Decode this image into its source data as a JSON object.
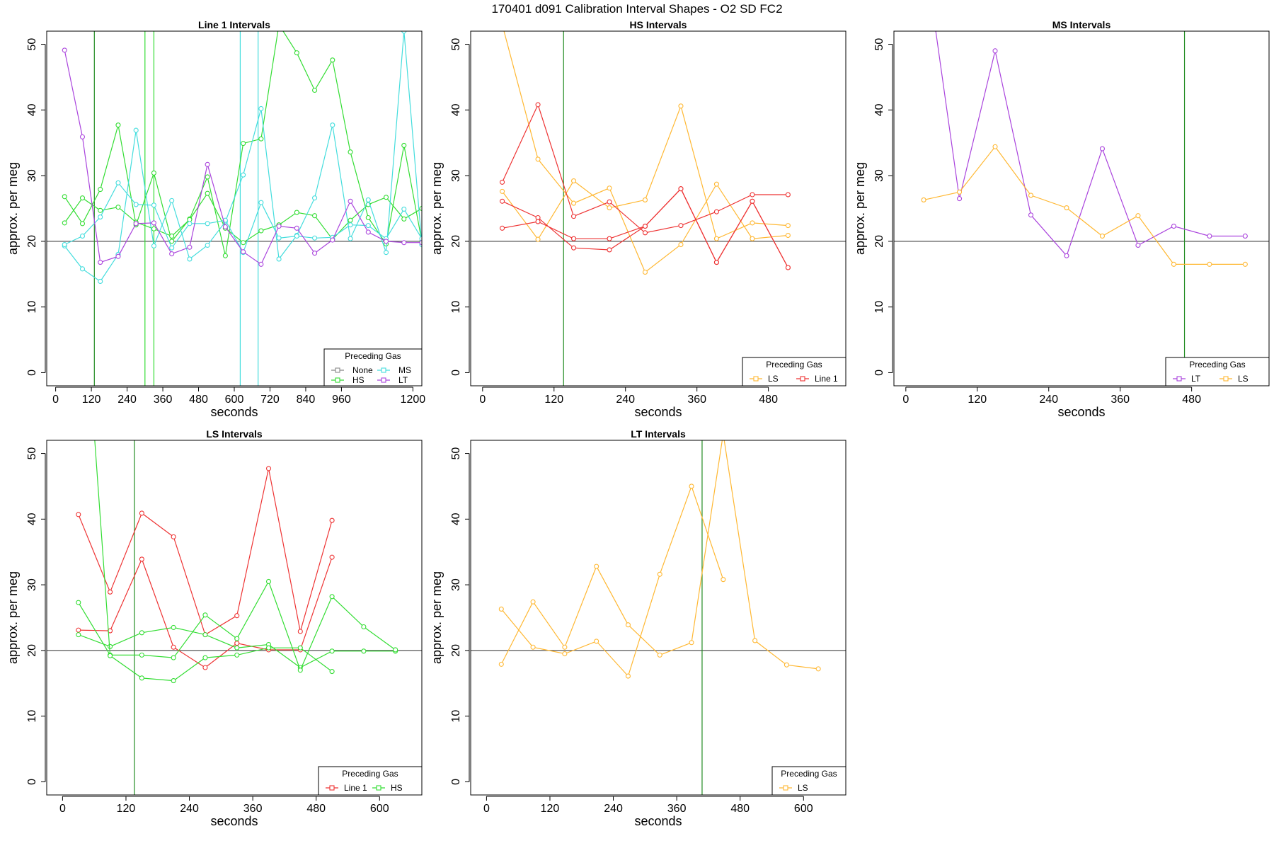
{
  "suptitle": "170401    d091    Calibration Interval Shapes - O2 SD FC2",
  "legend_title": "Preceding Gas",
  "colors": {
    "None": "#888888",
    "HS": "#33dd33",
    "MS": "#44dddd",
    "LT": "#aa44dd",
    "LS": "#ffb833",
    "Line 1": "#ee3333",
    "vline_green": "#228b22",
    "hline": "#555555"
  },
  "chart_data": [
    {
      "type": "line",
      "title": "Line 1 Intervals",
      "xlabel": "seconds",
      "ylabel": "approx. per meg",
      "xlim": [
        -30,
        1230
      ],
      "ylim": [
        -2,
        52
      ],
      "xticks": [
        0,
        120,
        240,
        360,
        480,
        600,
        720,
        840,
        960,
        1200
      ],
      "yticks": [
        0,
        10,
        20,
        30,
        40,
        50
      ],
      "hline": 20,
      "legend_position": "bottom-right",
      "legend": [
        "None",
        "HS",
        "MS",
        "LT"
      ],
      "vlines": [
        {
          "x": 130,
          "color": "vline_green"
        },
        {
          "x": 300,
          "color": "HS"
        },
        {
          "x": 330,
          "color": "HS"
        },
        {
          "x": 620,
          "color": "MS"
        },
        {
          "x": 680,
          "color": "MS"
        }
      ],
      "series": [
        {
          "name": "None",
          "x": [],
          "y": []
        },
        {
          "name": "HS",
          "x": [
            30,
            90,
            150,
            210,
            270,
            330,
            390,
            450,
            510,
            570,
            630,
            690,
            750,
            810,
            870,
            930,
            990,
            1050,
            1110,
            1170,
            1230
          ],
          "y": [
            26.8,
            22.7,
            27.9,
            37.7,
            22.5,
            30.4,
            20.0,
            23.4,
            29.8,
            17.8,
            34.9,
            35.6,
            53.0,
            48.7,
            43.0,
            47.6,
            33.6,
            23.6,
            19.6,
            34.6,
            20.0
          ]
        },
        {
          "name": "HS",
          "x": [
            30,
            90,
            150,
            210,
            270,
            330,
            390,
            450,
            510,
            570,
            630,
            690,
            750,
            810,
            870,
            930,
            990,
            1050,
            1110,
            1170,
            1230
          ],
          "y": [
            22.8,
            26.6,
            24.7,
            25.2,
            22.9,
            21.9,
            20.8,
            23.3,
            27.3,
            22.0,
            19.8,
            21.6,
            22.5,
            24.4,
            23.9,
            20.3,
            23.2,
            25.6,
            26.7,
            23.4,
            25.0
          ]
        },
        {
          "name": "MS",
          "x": [
            30,
            90,
            150,
            210,
            270,
            330,
            390,
            450,
            510,
            570,
            630,
            690,
            750,
            810,
            870,
            930,
            990,
            1050,
            1110,
            1170,
            1230
          ],
          "y": [
            19.3,
            15.8,
            13.9,
            18.0,
            36.9,
            19.3,
            26.2,
            17.3,
            19.4,
            23.0,
            30.1,
            40.2,
            17.3,
            20.9,
            26.6,
            37.7,
            20.4,
            26.3,
            18.3,
            52.0,
            19.5
          ]
        },
        {
          "name": "MS",
          "x": [
            30,
            90,
            150,
            210,
            270,
            330,
            390,
            450,
            510,
            570,
            630,
            690,
            750,
            810,
            870,
            930,
            990,
            1050,
            1110,
            1170,
            1230
          ],
          "y": [
            19.5,
            20.8,
            23.7,
            28.9,
            25.6,
            25.5,
            19.0,
            22.7,
            22.7,
            23.2,
            18.3,
            25.9,
            20.5,
            20.8,
            20.5,
            20.6,
            22.5,
            22.4,
            20.4,
            24.9,
            20.4
          ]
        },
        {
          "name": "LT",
          "x": [
            30,
            90,
            150,
            210,
            270,
            330,
            390,
            450,
            510,
            570,
            630,
            690,
            750,
            810,
            870,
            930,
            990,
            1050,
            1110,
            1170,
            1230
          ],
          "y": [
            49.1,
            35.9,
            16.8,
            17.7,
            22.7,
            22.8,
            18.1,
            19.1,
            31.7,
            22.2,
            18.4,
            16.5,
            22.3,
            22.0,
            18.2,
            20.2,
            26.1,
            21.4,
            20.0,
            19.8,
            19.8
          ]
        }
      ]
    },
    {
      "type": "line",
      "title": "HS Intervals",
      "xlabel": "seconds",
      "ylabel": "approx. per meg",
      "xlim": [
        -20,
        610
      ],
      "ylim": [
        -2,
        52
      ],
      "xticks": [
        0,
        120,
        240,
        360,
        480
      ],
      "yticks": [
        0,
        10,
        20,
        30,
        40,
        50
      ],
      "hline": 20,
      "legend_position": "bottom-right",
      "legend": [
        "LS",
        "Line 1"
      ],
      "vlines": [
        {
          "x": 136,
          "color": "vline_green"
        }
      ],
      "series": [
        {
          "name": "LS",
          "x": [
            33,
            93,
            153,
            213,
            273,
            333,
            393,
            453,
            513
          ],
          "y": [
            53.0,
            32.5,
            25.8,
            28.1,
            15.3,
            19.5,
            28.7,
            20.4,
            20.9
          ]
        },
        {
          "name": "LS",
          "x": [
            33,
            93,
            153,
            213,
            273,
            333,
            393,
            453,
            513
          ],
          "y": [
            27.6,
            20.3,
            29.2,
            25.1,
            26.3,
            40.6,
            20.4,
            22.8,
            22.4
          ]
        },
        {
          "name": "Line 1",
          "x": [
            33,
            93,
            153,
            213,
            273,
            333,
            393,
            453,
            513
          ],
          "y": [
            29.0,
            40.8,
            23.8,
            26.0,
            21.3,
            22.4,
            24.5,
            27.1,
            27.1
          ]
        },
        {
          "name": "Line 1",
          "x": [
            33,
            93,
            153,
            213,
            273,
            333,
            393,
            453,
            513
          ],
          "y": [
            26.1,
            23.6,
            19.0,
            18.7,
            22.3,
            28.0,
            16.8,
            26.1,
            16.0
          ]
        },
        {
          "name": "Line 1",
          "x": [
            33,
            93,
            153,
            213,
            273,
            333,
            393,
            453,
            513
          ],
          "y": [
            22.0,
            23.0,
            20.4,
            20.4,
            22.3,
            28.0,
            16.8,
            26.1,
            16.0
          ]
        }
      ]
    },
    {
      "type": "line",
      "title": "MS Intervals",
      "xlabel": "seconds",
      "ylabel": "approx. per meg",
      "xlim": [
        -20,
        610
      ],
      "ylim": [
        -2,
        52
      ],
      "xticks": [
        0,
        120,
        240,
        360,
        480
      ],
      "yticks": [
        0,
        10,
        20,
        30,
        40,
        50
      ],
      "hline": 20,
      "legend_position": "bottom-right",
      "legend": [
        "LT",
        "LS"
      ],
      "vlines": [
        {
          "x": 468,
          "color": "vline_green"
        }
      ],
      "series": [
        {
          "name": "LT",
          "x": [
            30,
            90,
            150,
            210,
            270,
            330,
            390,
            450,
            510,
            570
          ],
          "y": [
            65.0,
            26.5,
            49.0,
            24.0,
            17.8,
            34.1,
            19.4,
            22.3,
            20.8,
            20.8
          ]
        },
        {
          "name": "LS",
          "x": [
            30,
            90,
            150,
            210,
            270,
            330,
            390,
            450,
            510,
            570
          ],
          "y": [
            26.3,
            27.5,
            34.4,
            27.0,
            25.1,
            20.8,
            23.9,
            16.5,
            16.5,
            16.5
          ]
        }
      ]
    },
    {
      "type": "line",
      "title": "LS Intervals",
      "xlabel": "seconds",
      "ylabel": "approx. per meg",
      "xlim": [
        -30,
        680
      ],
      "ylim": [
        -2,
        52
      ],
      "xticks": [
        0,
        120,
        240,
        360,
        480,
        600
      ],
      "yticks": [
        0,
        10,
        20,
        30,
        40,
        50
      ],
      "hline": 20,
      "legend_position": "bottom-right",
      "legend": [
        "Line 1",
        "HS"
      ],
      "vlines": [
        {
          "x": 136,
          "color": "vline_green"
        }
      ],
      "series": [
        {
          "name": "Line 1",
          "x": [
            30,
            90,
            150,
            210,
            270,
            330,
            390,
            450,
            510
          ],
          "y": [
            40.7,
            28.9,
            40.9,
            37.3,
            22.4,
            25.3,
            47.7,
            22.9,
            39.8
          ]
        },
        {
          "name": "Line 1",
          "x": [
            30,
            90,
            150,
            210,
            270,
            330,
            390,
            450,
            510
          ],
          "y": [
            23.1,
            23.0,
            33.9,
            20.5,
            17.4,
            21.1,
            20.1,
            20.1,
            34.2
          ]
        },
        {
          "name": "HS",
          "x": [
            30,
            90,
            150,
            210,
            270,
            330,
            390,
            450,
            510,
            570,
            630
          ],
          "y": [
            22.4,
            20.6,
            22.7,
            23.5,
            22.4,
            20.4,
            20.9,
            17.4,
            19.9,
            19.9,
            19.9
          ]
        },
        {
          "name": "HS",
          "x": [
            30,
            90,
            150,
            210,
            270,
            330,
            390,
            450,
            510,
            570,
            630
          ],
          "y": [
            27.3,
            19.3,
            19.3,
            18.9,
            25.4,
            21.8,
            30.5,
            17.0,
            28.2,
            23.6,
            20.1
          ]
        },
        {
          "name": "HS",
          "x": [
            60,
            90,
            150,
            210,
            270,
            330,
            390,
            450,
            510
          ],
          "y": [
            53.0,
            19.2,
            15.8,
            15.4,
            18.9,
            19.3,
            20.4,
            20.4,
            16.8
          ]
        }
      ]
    },
    {
      "type": "line",
      "title": "LT Intervals",
      "xlabel": "seconds",
      "ylabel": "approx. per meg",
      "xlim": [
        -30,
        680
      ],
      "ylim": [
        -2,
        52
      ],
      "xticks": [
        0,
        120,
        240,
        360,
        480,
        600
      ],
      "yticks": [
        0,
        10,
        20,
        30,
        40,
        50
      ],
      "hline": 20,
      "legend_position": "bottom-right",
      "legend": [
        "LS"
      ],
      "vlines": [
        {
          "x": 408,
          "color": "vline_green"
        }
      ],
      "series": [
        {
          "name": "LS",
          "x": [
            28,
            88,
            148,
            208,
            268,
            328,
            388,
            448,
            508,
            568,
            628
          ],
          "y": [
            17.9,
            27.4,
            20.5,
            32.8,
            23.9,
            19.3,
            21.2,
            53.0,
            21.5,
            17.8,
            17.2
          ]
        },
        {
          "name": "LS",
          "x": [
            28,
            88,
            148,
            208,
            268,
            328,
            388,
            448
          ],
          "y": [
            26.3,
            20.5,
            19.5,
            21.4,
            16.1,
            31.6,
            45.0,
            30.8
          ]
        }
      ]
    }
  ]
}
